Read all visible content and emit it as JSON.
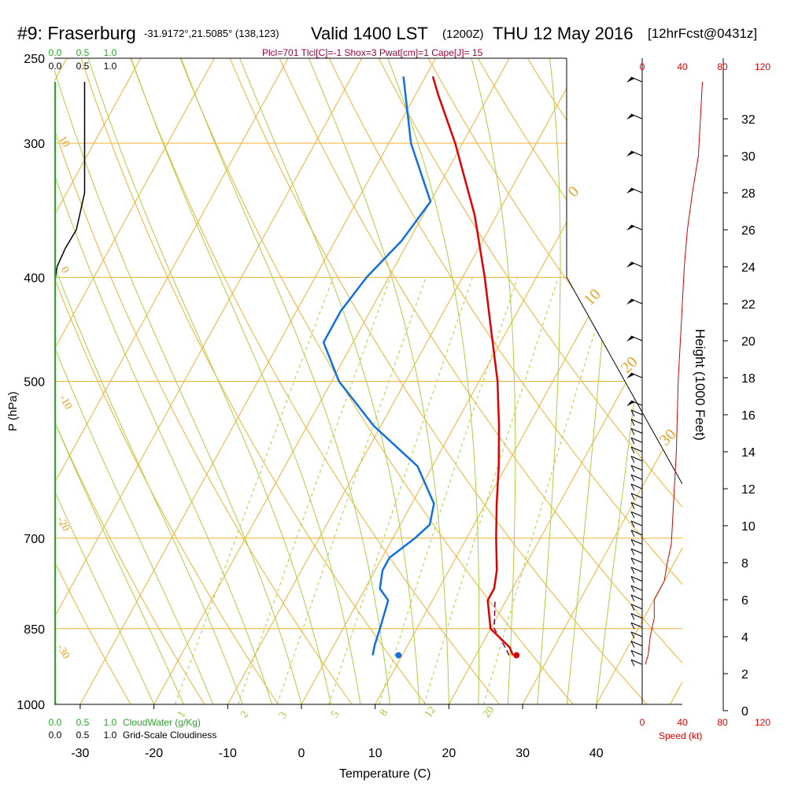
{
  "header": {
    "station": "#9: Fraserburg",
    "coords": "-31.9172°,21.5085° (138,123)",
    "valid": "Valid 1400 LST",
    "zulu": "(1200Z)",
    "date": "THU 12 May 2016",
    "forecast": "[12hrFcst@0431z]",
    "indices": "Plcl=701 Tlcl[C]=-1 Shox=3 Pwat[cm]=1 Cape[J]= 15"
  },
  "chart_data": {
    "type": "skew-t",
    "title": "#9: Fraserburg",
    "xlabel": "Temperature (C)",
    "ylabel": "P (hPa)",
    "right_axis_label": "Height (1000 Feet)",
    "speed_label": "Speed (kt)",
    "x_ticks": [
      -30,
      -20,
      -10,
      0,
      10,
      20,
      30,
      40
    ],
    "p_ticks": [
      250,
      300,
      400,
      500,
      700,
      850,
      1000
    ],
    "height_ticks": [
      0,
      2,
      4,
      6,
      8,
      10,
      12,
      14,
      16,
      18,
      20,
      22,
      24,
      26,
      28,
      30,
      32
    ],
    "speed_ticks": [
      0,
      40,
      80,
      120
    ],
    "cloud_ticks": [
      "0.0",
      "0.5",
      "1.0"
    ],
    "cloudwater_label": "CloudWater (g/Kg)",
    "cloudiness_label": "Grid-Scale Cloudiness",
    "dry_adiabat_labels": [
      "0",
      "10",
      "20",
      "30"
    ],
    "isotherm_labels": [
      "10",
      "0",
      "-10",
      "-20",
      "-30"
    ],
    "mixing_ratio_labels": [
      "1",
      "2",
      "3",
      "5",
      "8",
      "12",
      "20"
    ],
    "temperature": {
      "p": [
        900,
        885,
        850,
        800,
        780,
        750,
        700,
        650,
        600,
        550,
        500,
        450,
        400,
        350,
        300,
        270,
        260
      ],
      "t": [
        25,
        24,
        20,
        17.5,
        17.5,
        16.5,
        14,
        11.5,
        9,
        6,
        2.5,
        -2,
        -7,
        -13,
        -21,
        -27,
        -29
      ]
    },
    "dewpoint": {
      "p": [
        900,
        880,
        850,
        800,
        780,
        750,
        730,
        700,
        680,
        650,
        600,
        550,
        500,
        460,
        430,
        400,
        370,
        340,
        300,
        260
      ],
      "td": [
        6,
        5.5,
        5,
        4,
        2,
        1,
        1,
        3,
        4,
        3,
        -2,
        -11,
        -19,
        -24,
        -24,
        -23,
        -21,
        -20,
        -27,
        -33
      ]
    },
    "parcel": {
      "p": [
        900,
        880,
        850,
        800
      ],
      "t": [
        24.5,
        23,
        20.5,
        18.5
      ]
    },
    "surface_temp": 25.5,
    "surface_dewpoint": 9.5,
    "surface_pressure": 900,
    "cloudiness_profile": {
      "h": [
        34,
        32,
        28,
        26,
        25,
        24,
        23
      ],
      "frac": [
        0.55,
        0.55,
        0.55,
        0.4,
        0.2,
        0.05,
        0.0
      ]
    },
    "wind_speed_profile": {
      "h": [
        2.5,
        3,
        4,
        5,
        6,
        7,
        8,
        9,
        10,
        11,
        12,
        13,
        14,
        16,
        18,
        20,
        22,
        24,
        26,
        28,
        30,
        32,
        34
      ],
      "kt": [
        3,
        6,
        8,
        12,
        12,
        22,
        25,
        29,
        30,
        31,
        32,
        33,
        34,
        35,
        36,
        38,
        40,
        42,
        45,
        50,
        56,
        58,
        60
      ]
    },
    "wind_barbs_h": [
      2.5,
      3,
      3.5,
      4,
      4.5,
      5,
      5.5,
      6,
      6.5,
      7,
      7.5,
      8,
      8.5,
      9,
      9.5,
      10,
      10.5,
      11,
      11.5,
      12,
      12.5,
      13,
      13.5,
      14,
      14.5,
      15,
      15.5,
      16,
      16.5,
      18,
      20,
      22,
      24,
      26,
      28,
      30,
      32,
      34
    ]
  }
}
